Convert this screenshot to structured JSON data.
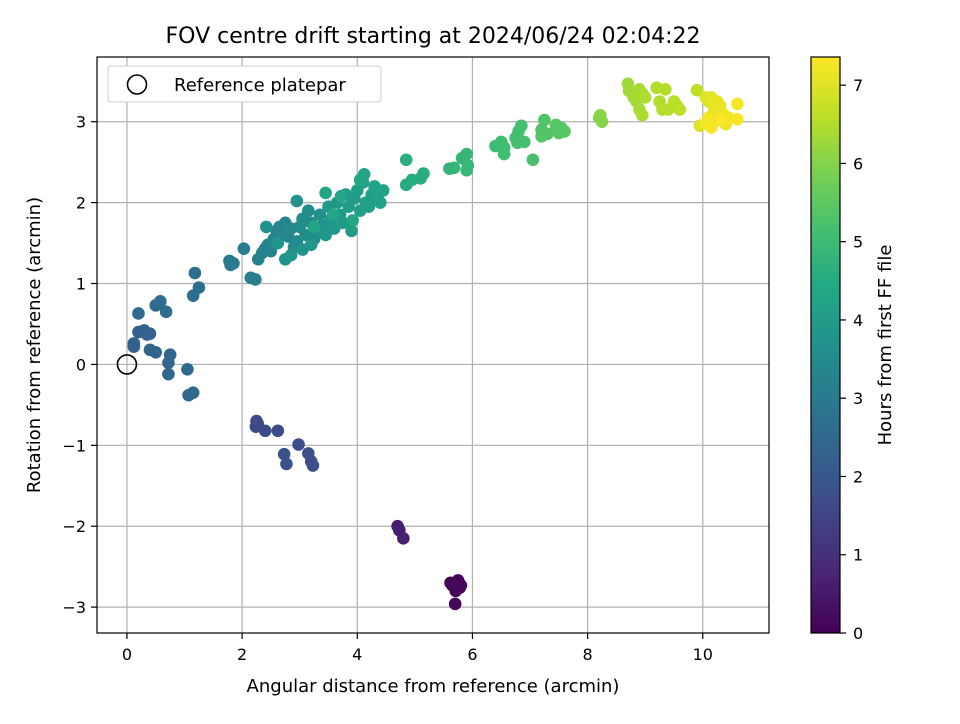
{
  "chart_data": {
    "type": "scatter",
    "title": "FOV centre drift starting at 2024/06/24 02:04:22",
    "xlabel": "Angular distance from reference (arcmin)",
    "ylabel": "Rotation from reference (arcmin)",
    "xlim": [
      -0.52,
      11.15
    ],
    "ylim": [
      -3.32,
      3.8
    ],
    "xticks": [
      "0",
      "2",
      "4",
      "6",
      "8",
      "10"
    ],
    "yticks": [
      "−3",
      "−2",
      "−1",
      "0",
      "1",
      "2",
      "3"
    ],
    "grid": true,
    "legend": {
      "placement": "top-left",
      "entries": [
        "Reference platepar"
      ]
    },
    "reference_point": {
      "x": 0,
      "y": 0
    },
    "colorbar": {
      "label": "Hours from first FF file",
      "range": [
        0,
        7.36
      ],
      "ticks": [
        "0",
        "1",
        "2",
        "3",
        "4",
        "5",
        "6",
        "7"
      ],
      "colormap": "viridis"
    },
    "points": [
      [
        5.62,
        -2.7,
        0.02
      ],
      [
        5.75,
        -2.67,
        0.04
      ],
      [
        5.8,
        -2.73,
        0.06
      ],
      [
        5.78,
        -2.76,
        0.08
      ],
      [
        5.71,
        -2.8,
        0.1
      ],
      [
        5.7,
        -2.96,
        0.12
      ],
      [
        5.65,
        -2.73,
        0.14
      ],
      [
        4.7,
        -2.0,
        0.6
      ],
      [
        4.73,
        -2.05,
        0.63
      ],
      [
        4.8,
        -2.15,
        0.66
      ],
      [
        2.25,
        -0.7,
        1.6
      ],
      [
        2.27,
        -0.73,
        1.62
      ],
      [
        2.24,
        -0.77,
        1.64
      ],
      [
        2.4,
        -0.82,
        1.66
      ],
      [
        2.62,
        -0.82,
        1.68
      ],
      [
        2.98,
        -0.99,
        1.72
      ],
      [
        3.15,
        -1.1,
        1.74
      ],
      [
        3.2,
        -1.2,
        1.76
      ],
      [
        3.23,
        -1.25,
        1.78
      ],
      [
        2.73,
        -1.11,
        1.8
      ],
      [
        2.77,
        -1.23,
        1.82
      ],
      [
        0.12,
        0.22,
        2.2
      ],
      [
        0.12,
        0.26,
        2.22
      ],
      [
        0.2,
        0.4,
        2.25
      ],
      [
        0.35,
        0.37,
        2.28
      ],
      [
        0.3,
        0.42,
        2.3
      ],
      [
        0.4,
        0.38,
        2.33
      ],
      [
        0.4,
        0.18,
        2.36
      ],
      [
        0.5,
        0.15,
        2.38
      ],
      [
        0.75,
        0.12,
        2.4
      ],
      [
        0.72,
        0.02,
        2.42
      ],
      [
        0.72,
        -0.12,
        2.44
      ],
      [
        1.07,
        -0.38,
        2.46
      ],
      [
        1.15,
        -0.35,
        2.48
      ],
      [
        1.05,
        -0.06,
        2.5
      ],
      [
        0.2,
        0.63,
        2.52
      ],
      [
        0.5,
        0.73,
        2.55
      ],
      [
        0.58,
        0.78,
        2.58
      ],
      [
        0.68,
        0.65,
        2.6
      ],
      [
        1.15,
        0.85,
        2.62
      ],
      [
        1.25,
        0.95,
        2.65
      ],
      [
        1.18,
        1.13,
        2.68
      ],
      [
        1.78,
        1.28,
        3.0
      ],
      [
        1.85,
        1.25,
        3.02
      ],
      [
        1.8,
        1.23,
        3.04
      ],
      [
        2.03,
        1.43,
        3.06
      ],
      [
        2.15,
        1.07,
        3.08
      ],
      [
        2.23,
        1.05,
        3.1
      ],
      [
        2.28,
        1.3,
        3.15
      ],
      [
        2.35,
        1.38,
        3.18
      ],
      [
        2.4,
        1.43,
        3.2
      ],
      [
        2.45,
        1.48,
        3.22
      ],
      [
        2.5,
        1.4,
        3.25
      ],
      [
        2.55,
        1.55,
        3.28
      ],
      [
        2.6,
        1.65,
        3.3
      ],
      [
        2.65,
        1.7,
        3.32
      ],
      [
        2.7,
        1.62,
        3.35
      ],
      [
        2.75,
        1.75,
        3.38
      ],
      [
        2.8,
        1.58,
        3.4
      ],
      [
        2.85,
        1.68,
        3.42
      ],
      [
        2.9,
        1.45,
        3.45
      ],
      [
        2.95,
        1.52,
        3.48
      ],
      [
        3.0,
        1.7,
        3.5
      ],
      [
        3.05,
        1.8,
        3.52
      ],
      [
        3.1,
        1.6,
        3.55
      ],
      [
        3.15,
        1.9,
        3.58
      ],
      [
        3.2,
        1.75,
        3.6
      ],
      [
        3.25,
        1.55,
        3.62
      ],
      [
        3.3,
        1.65,
        3.65
      ],
      [
        3.35,
        1.85,
        3.68
      ],
      [
        3.4,
        1.72,
        3.7
      ],
      [
        2.42,
        1.7,
        3.72
      ],
      [
        2.75,
        1.3,
        3.74
      ],
      [
        2.95,
        2.02,
        3.76
      ],
      [
        2.62,
        1.5,
        3.78
      ],
      [
        2.85,
        1.35,
        3.8
      ],
      [
        3.05,
        1.42,
        3.82
      ],
      [
        3.2,
        1.48,
        3.84
      ],
      [
        3.45,
        1.6,
        3.86
      ],
      [
        3.5,
        1.95,
        3.88
      ],
      [
        3.55,
        1.8,
        3.9
      ],
      [
        3.6,
        1.68,
        3.92
      ],
      [
        3.65,
        2.0,
        3.94
      ],
      [
        3.7,
        1.85,
        3.96
      ],
      [
        3.75,
        1.75,
        3.98
      ],
      [
        3.8,
        2.1,
        4.0
      ],
      [
        3.85,
        1.95,
        4.02
      ],
      [
        3.9,
        1.65,
        4.04
      ],
      [
        3.95,
        2.05,
        4.06
      ],
      [
        4.0,
        2.15,
        4.08
      ],
      [
        4.05,
        1.9,
        4.1
      ],
      [
        4.1,
        2.25,
        4.12
      ],
      [
        4.15,
        2.0,
        4.14
      ],
      [
        4.2,
        1.95,
        4.16
      ],
      [
        4.25,
        2.1,
        4.18
      ],
      [
        4.3,
        2.2,
        4.2
      ],
      [
        4.35,
        2.05,
        4.22
      ],
      [
        4.4,
        2.0,
        4.24
      ],
      [
        4.45,
        2.15,
        4.26
      ],
      [
        4.12,
        2.35,
        4.28
      ],
      [
        3.45,
        2.12,
        4.3
      ],
      [
        3.25,
        1.7,
        4.32
      ],
      [
        3.58,
        1.85,
        4.34
      ],
      [
        3.72,
        2.08,
        4.36
      ],
      [
        4.05,
        2.28,
        4.38
      ],
      [
        3.92,
        1.78,
        4.4
      ],
      [
        4.85,
        2.22,
        4.5
      ],
      [
        4.95,
        2.28,
        4.52
      ],
      [
        5.1,
        2.3,
        4.54
      ],
      [
        5.15,
        2.36,
        4.56
      ],
      [
        4.85,
        2.53,
        4.58
      ],
      [
        5.6,
        2.42,
        4.8
      ],
      [
        5.68,
        2.43,
        4.82
      ],
      [
        5.82,
        2.55,
        4.84
      ],
      [
        5.9,
        2.6,
        4.86
      ],
      [
        5.92,
        2.46,
        4.88
      ],
      [
        5.9,
        2.4,
        4.9
      ],
      [
        6.4,
        2.7,
        5.0
      ],
      [
        6.5,
        2.75,
        5.02
      ],
      [
        6.55,
        2.68,
        5.04
      ],
      [
        6.55,
        2.6,
        5.06
      ],
      [
        6.5,
        2.73,
        5.08
      ],
      [
        6.75,
        2.8,
        5.1
      ],
      [
        6.8,
        2.88,
        5.12
      ],
      [
        6.85,
        2.95,
        5.14
      ],
      [
        6.9,
        2.75,
        5.16
      ],
      [
        6.78,
        2.74,
        5.18
      ],
      [
        7.05,
        2.53,
        5.2
      ],
      [
        7.2,
        2.9,
        5.3
      ],
      [
        7.25,
        3.02,
        5.32
      ],
      [
        7.3,
        2.85,
        5.34
      ],
      [
        7.2,
        2.82,
        5.36
      ],
      [
        7.45,
        2.96,
        5.38
      ],
      [
        7.5,
        2.86,
        5.4
      ],
      [
        7.55,
        2.92,
        5.42
      ],
      [
        7.6,
        2.88,
        5.44
      ],
      [
        8.2,
        3.05,
        6.0
      ],
      [
        8.25,
        3.0,
        6.02
      ],
      [
        8.22,
        3.08,
        6.04
      ],
      [
        8.7,
        3.47,
        6.3
      ],
      [
        8.72,
        3.38,
        6.32
      ],
      [
        8.8,
        3.3,
        6.34
      ],
      [
        8.85,
        3.25,
        6.36
      ],
      [
        8.9,
        3.4,
        6.38
      ],
      [
        8.95,
        3.35,
        6.4
      ],
      [
        8.9,
        3.15,
        6.42
      ],
      [
        8.95,
        3.08,
        6.44
      ],
      [
        9.0,
        3.3,
        6.46
      ],
      [
        9.2,
        3.42,
        6.48
      ],
      [
        9.25,
        3.25,
        6.5
      ],
      [
        9.3,
        3.15,
        6.52
      ],
      [
        9.35,
        3.4,
        6.54
      ],
      [
        9.4,
        3.15,
        6.56
      ],
      [
        9.5,
        3.25,
        6.58
      ],
      [
        9.55,
        3.2,
        6.6
      ],
      [
        9.6,
        3.15,
        6.62
      ],
      [
        9.9,
        3.39,
        6.64
      ],
      [
        9.95,
        2.95,
        7.0
      ],
      [
        10.05,
        3.3,
        7.02
      ],
      [
        10.1,
        3.25,
        7.04
      ],
      [
        10.15,
        3.3,
        7.06
      ],
      [
        10.2,
        3.15,
        7.08
      ],
      [
        10.2,
        3.0,
        7.1
      ],
      [
        10.25,
        3.25,
        7.12
      ],
      [
        10.3,
        3.2,
        7.14
      ],
      [
        10.35,
        3.1,
        7.16
      ],
      [
        10.4,
        2.97,
        7.18
      ],
      [
        10.45,
        3.05,
        7.2
      ],
      [
        10.1,
        3.05,
        7.22
      ],
      [
        10.05,
        2.98,
        7.24
      ],
      [
        10.15,
        2.93,
        7.26
      ],
      [
        10.6,
        3.22,
        7.28
      ],
      [
        10.6,
        3.03,
        7.3
      ],
      [
        10.32,
        3.03,
        7.34
      ]
    ]
  }
}
